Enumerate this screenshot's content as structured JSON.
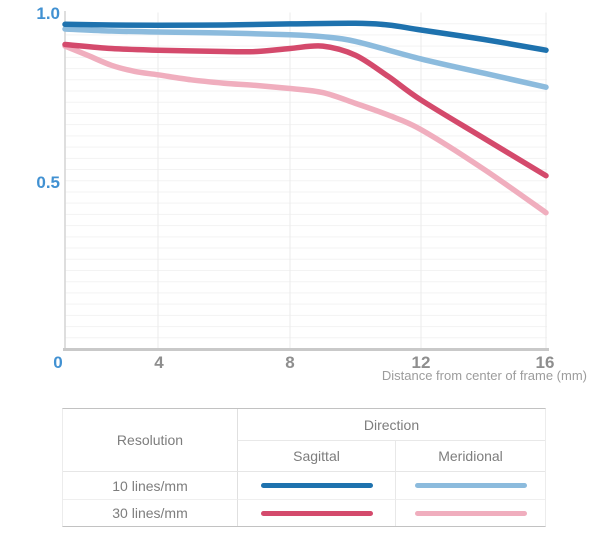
{
  "chart": {
    "y_tick_labels": [
      "1.0",
      "0.5"
    ],
    "x_tick_labels": [
      "0",
      "4",
      "8",
      "12",
      "16"
    ],
    "caption": "Distance from center of frame (mm)",
    "colors": {
      "axis_label_blue": "#4191d2",
      "axis_label_gray": "#8e8e8e",
      "axis_line": "#c9c9c9",
      "grid_horizontal": "#f3f3f3",
      "grid_vertical": "#ebebeb"
    }
  },
  "chart_data": {
    "type": "line",
    "title": "",
    "xlabel": "Distance from center of frame (mm)",
    "ylabel": "",
    "xlim": [
      0,
      16
    ],
    "ylim": [
      0,
      1.0
    ],
    "x_ticks": [
      0,
      4,
      8,
      12,
      16
    ],
    "y_ticks": [
      0.5,
      1.0
    ],
    "grid": "on",
    "legend_position": "table-below",
    "series": [
      {
        "name": "10 lines/mm Meridional",
        "color": "#8cbbdd",
        "x": [
          0,
          2,
          4,
          6,
          8,
          9,
          10,
          12,
          14,
          16
        ],
        "y": [
          0.951,
          0.945,
          0.942,
          0.939,
          0.934,
          0.928,
          0.914,
          0.862,
          0.82,
          0.778
        ]
      },
      {
        "name": "10 lines/mm Sagittal",
        "color": "#1e72ae",
        "x": [
          0,
          2,
          4,
          6,
          8,
          10,
          11,
          12,
          14,
          16
        ],
        "y": [
          0.965,
          0.963,
          0.962,
          0.963,
          0.966,
          0.968,
          0.963,
          0.948,
          0.92,
          0.888
        ]
      },
      {
        "name": "30 lines/mm Meridional",
        "color": "#f0aebe",
        "x": [
          0,
          1,
          2,
          3,
          4,
          5,
          6,
          7,
          8,
          9,
          10,
          11,
          12,
          14,
          16
        ],
        "y": [
          0.9,
          0.872,
          0.843,
          0.825,
          0.815,
          0.8,
          0.79,
          0.783,
          0.774,
          0.762,
          0.73,
          0.695,
          0.652,
          0.535,
          0.405
        ]
      },
      {
        "name": "30 lines/mm Sagittal",
        "color": "#d44a6c",
        "x": [
          0,
          2,
          4,
          6,
          7,
          8,
          9,
          10,
          11,
          12,
          14,
          16
        ],
        "y": [
          0.905,
          0.893,
          0.888,
          0.884,
          0.884,
          0.893,
          0.9,
          0.873,
          0.81,
          0.74,
          0.627,
          0.515
        ]
      }
    ]
  },
  "legend_table": {
    "resolution_header": "Resolution",
    "direction_header": "Direction",
    "sagittal_header": "Sagittal",
    "meridional_header": "Meridional",
    "rows": [
      {
        "label": "10 lines/mm",
        "sagittal_color": "#1e72ae",
        "meridional_color": "#8cbbdd"
      },
      {
        "label": "30 lines/mm",
        "sagittal_color": "#d44a6c",
        "meridional_color": "#f0aebe"
      }
    ]
  }
}
